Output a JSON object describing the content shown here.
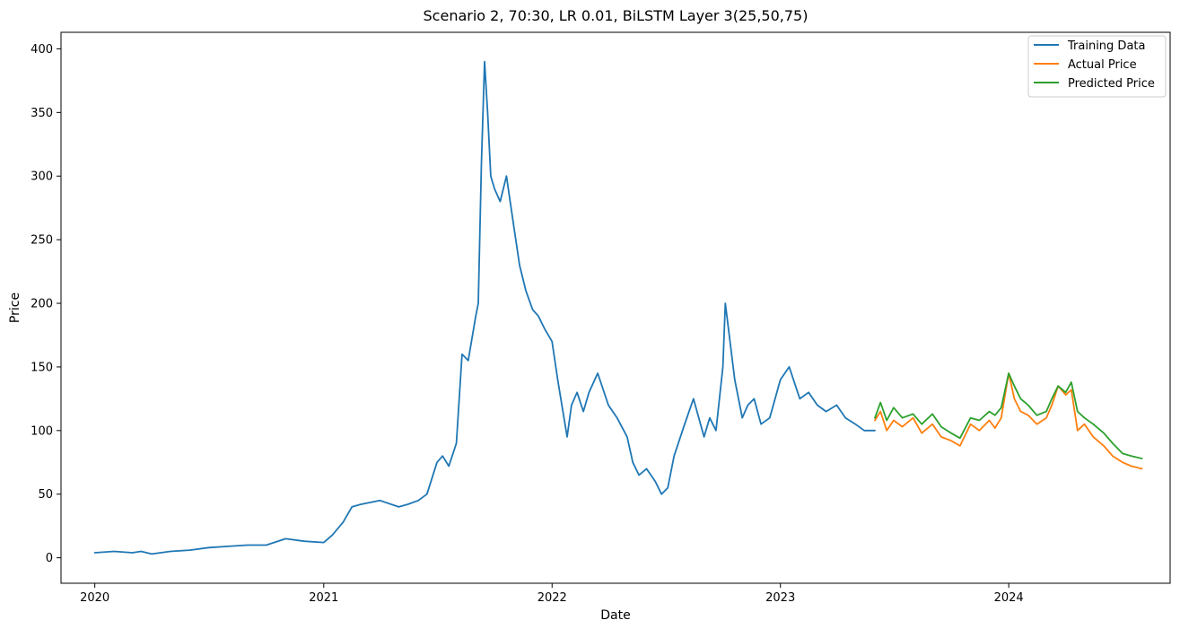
{
  "chart_data": {
    "type": "line",
    "title": "Scenario 2, 70:30, LR 0.01, BiLSTM Layer 3(25,50,75)",
    "xlabel": "Date",
    "ylabel": "Price",
    "x_ticks": [
      "2020",
      "2021",
      "2022",
      "2023",
      "2024"
    ],
    "y_ticks": [
      0,
      50,
      100,
      150,
      200,
      250,
      300,
      350,
      400
    ],
    "xlim": [
      "2019-11-08",
      "2024-09-15"
    ],
    "ylim": [
      -20,
      413
    ],
    "grid": false,
    "legend_position": "top-right",
    "series": [
      {
        "name": "Training Data",
        "color": "#1f77b4",
        "x": [
          "2020-01-01",
          "2020-02-01",
          "2020-03-01",
          "2020-03-15",
          "2020-04-01",
          "2020-05-01",
          "2020-06-01",
          "2020-07-01",
          "2020-08-01",
          "2020-09-01",
          "2020-10-01",
          "2020-11-01",
          "2020-12-01",
          "2021-01-01",
          "2021-01-15",
          "2021-02-01",
          "2021-02-15",
          "2021-03-01",
          "2021-04-01",
          "2021-05-01",
          "2021-05-15",
          "2021-06-01",
          "2021-06-15",
          "2021-07-01",
          "2021-07-10",
          "2021-07-20",
          "2021-08-01",
          "2021-08-10",
          "2021-08-20",
          "2021-09-01",
          "2021-09-05",
          "2021-09-10",
          "2021-09-15",
          "2021-09-20",
          "2021-09-25",
          "2021-10-01",
          "2021-10-10",
          "2021-10-20",
          "2021-11-01",
          "2021-11-10",
          "2021-11-20",
          "2021-12-01",
          "2021-12-10",
          "2021-12-20",
          "2022-01-01",
          "2022-01-10",
          "2022-01-20",
          "2022-01-25",
          "2022-02-01",
          "2022-02-10",
          "2022-02-20",
          "2022-03-01",
          "2022-03-15",
          "2022-04-01",
          "2022-04-15",
          "2022-05-01",
          "2022-05-10",
          "2022-05-20",
          "2022-06-01",
          "2022-06-15",
          "2022-06-25",
          "2022-07-05",
          "2022-07-15",
          "2022-08-01",
          "2022-08-15",
          "2022-09-01",
          "2022-09-10",
          "2022-09-20",
          "2022-10-01",
          "2022-10-05",
          "2022-10-10",
          "2022-10-20",
          "2022-11-01",
          "2022-11-10",
          "2022-11-20",
          "2022-12-01",
          "2022-12-15",
          "2023-01-01",
          "2023-01-15",
          "2023-02-01",
          "2023-02-15",
          "2023-03-01",
          "2023-03-15",
          "2023-04-01",
          "2023-04-15",
          "2023-05-01",
          "2023-05-15",
          "2023-06-01"
        ],
        "values": [
          4,
          5,
          4,
          5,
          3,
          5,
          6,
          8,
          9,
          10,
          10,
          15,
          13,
          12,
          18,
          28,
          40,
          42,
          45,
          40,
          42,
          45,
          50,
          75,
          80,
          72,
          90,
          160,
          155,
          190,
          200,
          310,
          390,
          350,
          300,
          290,
          280,
          300,
          260,
          230,
          210,
          195,
          190,
          180,
          170,
          140,
          110,
          95,
          120,
          130,
          115,
          130,
          145,
          120,
          110,
          95,
          75,
          65,
          70,
          60,
          50,
          55,
          80,
          105,
          125,
          95,
          110,
          100,
          150,
          200,
          180,
          140,
          110,
          120,
          125,
          105,
          110,
          140,
          150,
          125,
          130,
          120,
          115,
          120,
          110,
          105,
          100,
          100
        ]
      },
      {
        "name": "Actual Price",
        "color": "#ff7f0e",
        "x": [
          "2023-06-01",
          "2023-06-10",
          "2023-06-20",
          "2023-07-01",
          "2023-07-15",
          "2023-08-01",
          "2023-08-15",
          "2023-09-01",
          "2023-09-15",
          "2023-10-01",
          "2023-10-15",
          "2023-11-01",
          "2023-11-15",
          "2023-12-01",
          "2023-12-10",
          "2023-12-20",
          "2024-01-01",
          "2024-01-10",
          "2024-01-20",
          "2024-02-01",
          "2024-02-15",
          "2024-03-01",
          "2024-03-10",
          "2024-03-20",
          "2024-04-01",
          "2024-04-10",
          "2024-04-20",
          "2024-05-01",
          "2024-05-15",
          "2024-06-01",
          "2024-06-15",
          "2024-07-01",
          "2024-07-15",
          "2024-08-01"
        ],
        "values": [
          108,
          115,
          100,
          108,
          103,
          110,
          98,
          105,
          95,
          92,
          88,
          105,
          100,
          108,
          102,
          110,
          145,
          125,
          115,
          112,
          105,
          110,
          120,
          135,
          128,
          132,
          100,
          105,
          95,
          88,
          80,
          75,
          72,
          70
        ]
      },
      {
        "name": "Predicted Price",
        "color": "#2ca02c",
        "x": [
          "2023-06-01",
          "2023-06-10",
          "2023-06-20",
          "2023-07-01",
          "2023-07-15",
          "2023-08-01",
          "2023-08-15",
          "2023-09-01",
          "2023-09-15",
          "2023-10-01",
          "2023-10-15",
          "2023-11-01",
          "2023-11-15",
          "2023-12-01",
          "2023-12-10",
          "2023-12-20",
          "2024-01-01",
          "2024-01-10",
          "2024-01-20",
          "2024-02-01",
          "2024-02-15",
          "2024-03-01",
          "2024-03-10",
          "2024-03-20",
          "2024-04-01",
          "2024-04-10",
          "2024-04-20",
          "2024-05-01",
          "2024-05-15",
          "2024-06-01",
          "2024-06-15",
          "2024-07-01",
          "2024-07-15",
          "2024-08-01"
        ],
        "values": [
          110,
          122,
          108,
          118,
          110,
          113,
          105,
          113,
          103,
          98,
          94,
          110,
          108,
          115,
          112,
          118,
          145,
          135,
          125,
          120,
          112,
          115,
          125,
          135,
          130,
          138,
          115,
          110,
          105,
          98,
          90,
          82,
          80,
          78
        ]
      }
    ]
  }
}
